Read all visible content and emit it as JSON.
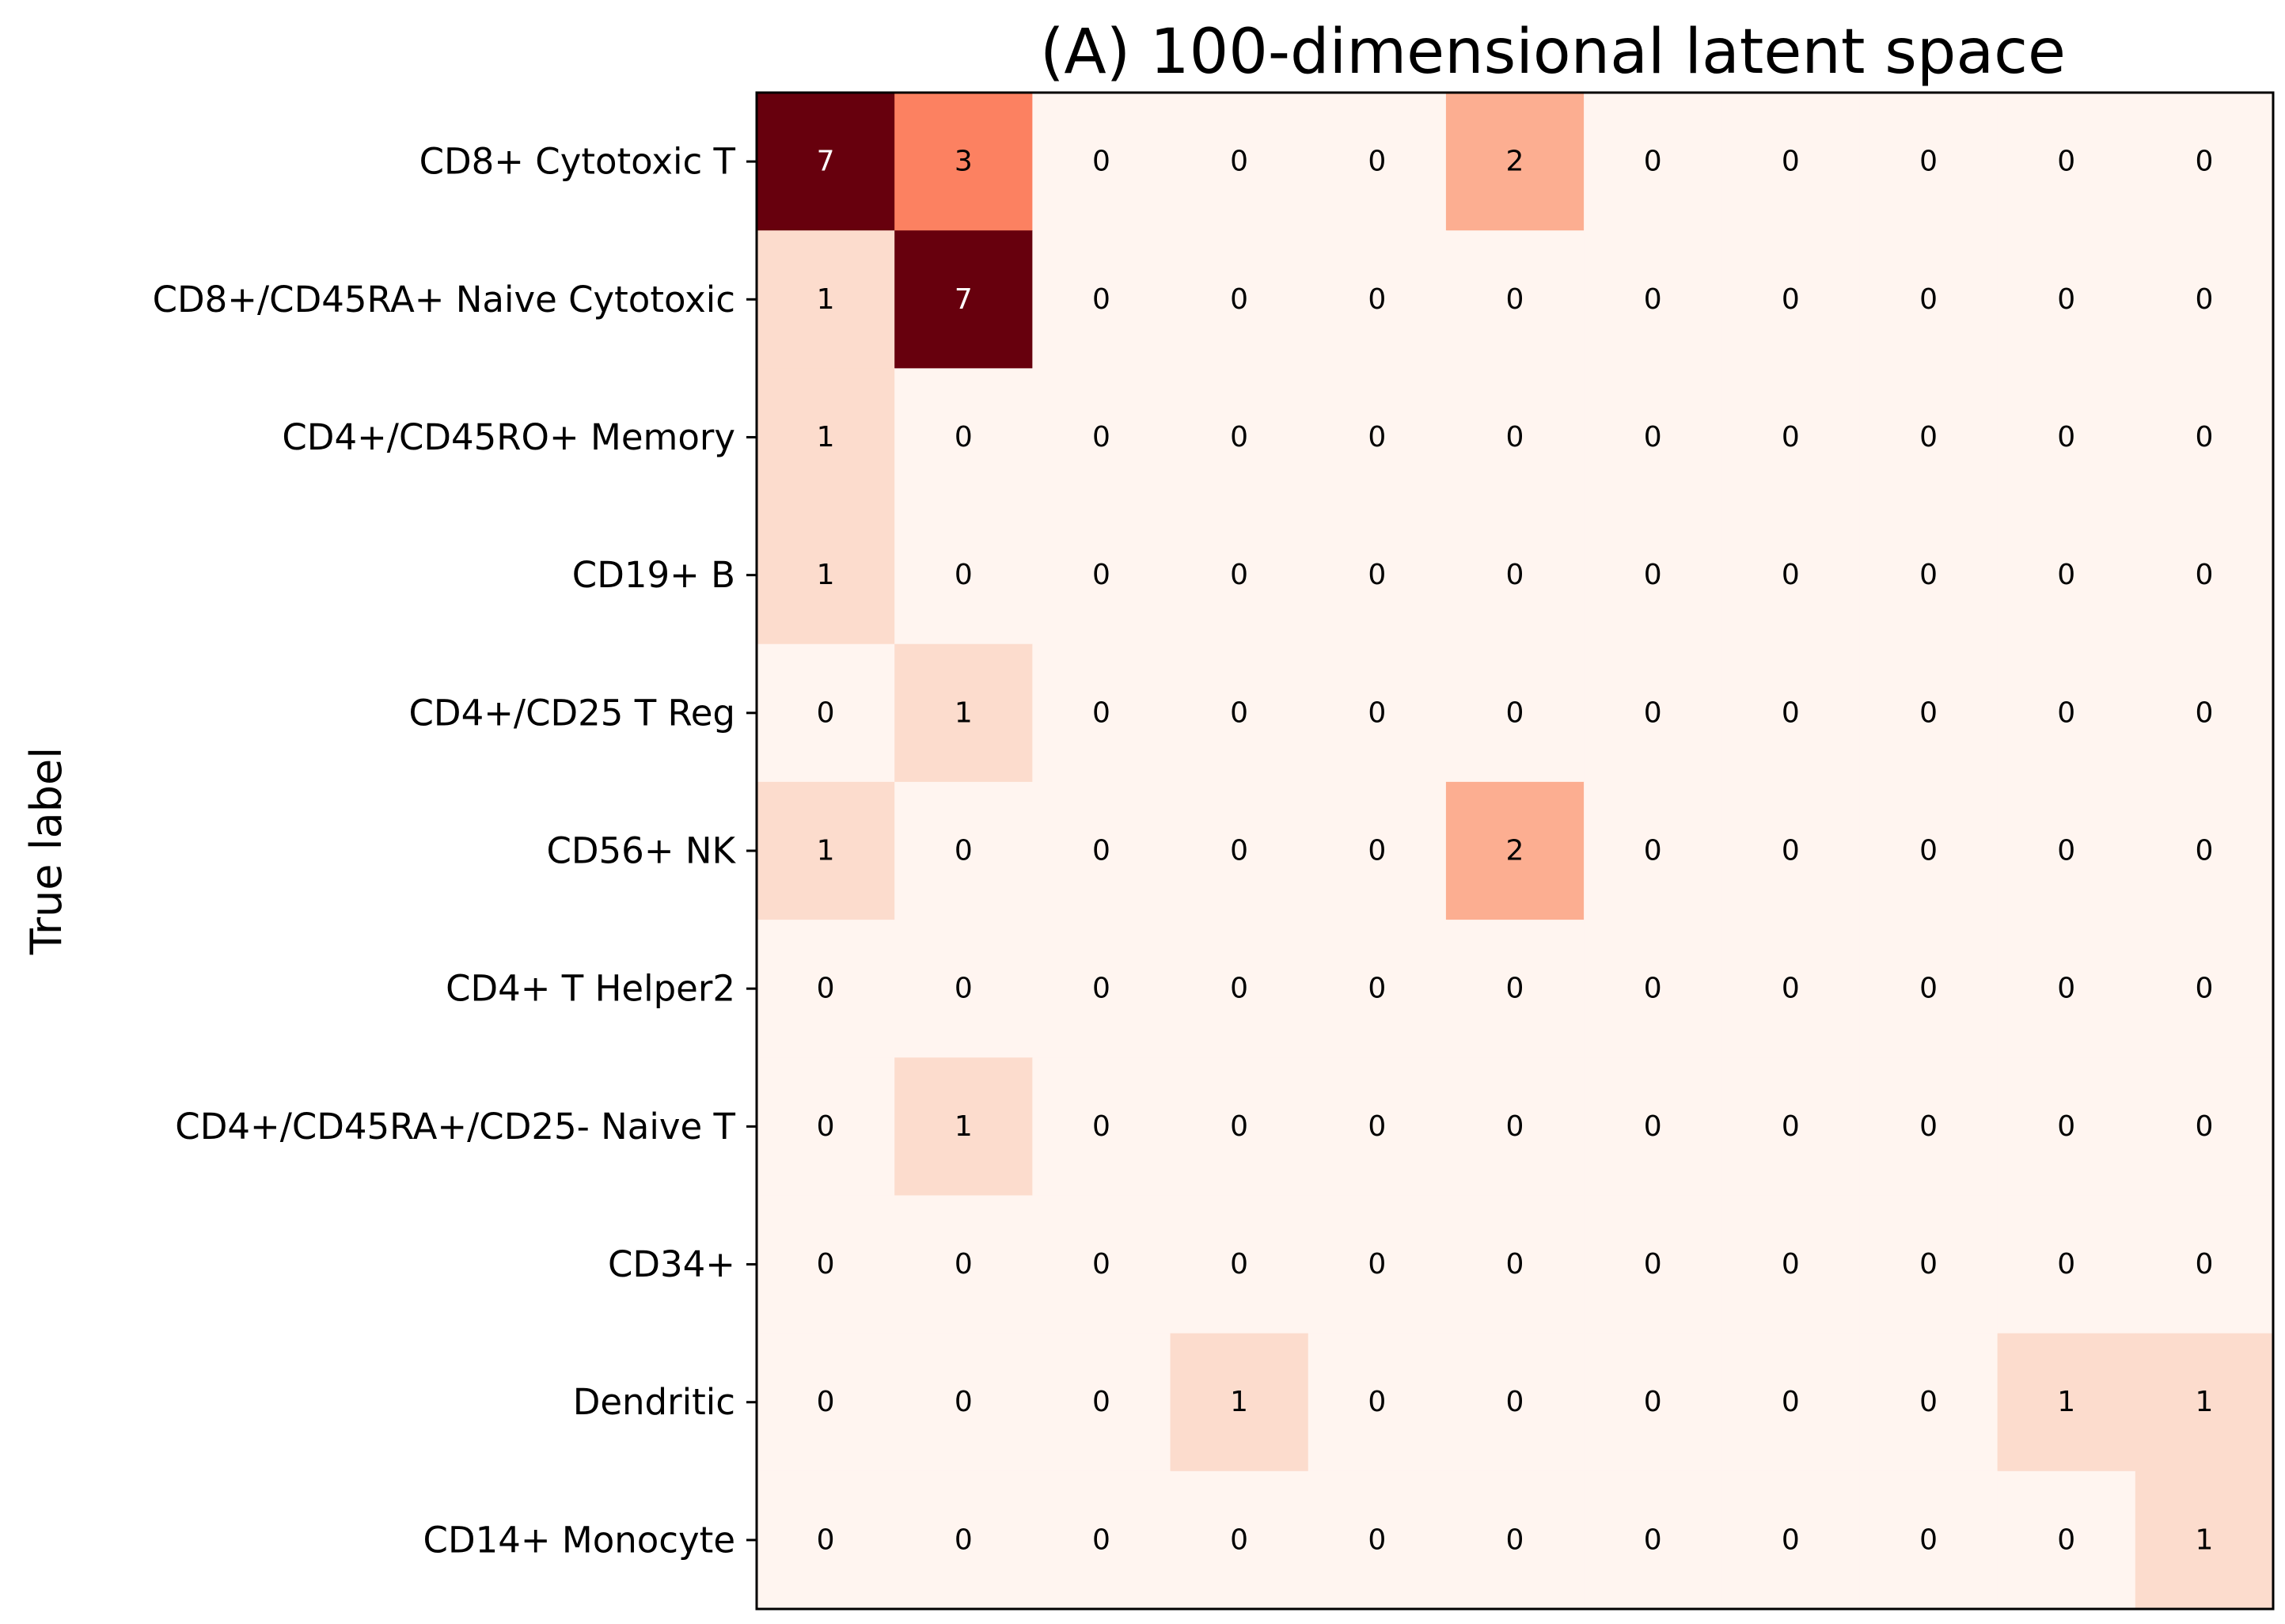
{
  "chart_data": {
    "type": "heatmap",
    "title": "(A) 100-dimensional latent space",
    "xlabel": "",
    "ylabel": "True label",
    "row_labels": [
      "CD8+ Cytotoxic T",
      "CD8+/CD45RA+ Naive Cytotoxic",
      "CD4+/CD45RO+ Memory",
      "CD19+ B",
      "CD4+/CD25 T Reg",
      "CD56+ NK",
      "CD4+ T Helper2",
      "CD4+/CD45RA+/CD25- Naive T",
      "CD34+",
      "Dendritic",
      "CD14+ Monocyte"
    ],
    "values": [
      [
        7,
        3,
        0,
        0,
        0,
        2,
        0,
        0,
        0,
        0,
        0
      ],
      [
        1,
        7,
        0,
        0,
        0,
        0,
        0,
        0,
        0,
        0,
        0
      ],
      [
        1,
        0,
        0,
        0,
        0,
        0,
        0,
        0,
        0,
        0,
        0
      ],
      [
        1,
        0,
        0,
        0,
        0,
        0,
        0,
        0,
        0,
        0,
        0
      ],
      [
        0,
        1,
        0,
        0,
        0,
        0,
        0,
        0,
        0,
        0,
        0
      ],
      [
        1,
        0,
        0,
        0,
        0,
        2,
        0,
        0,
        0,
        0,
        0
      ],
      [
        0,
        0,
        0,
        0,
        0,
        0,
        0,
        0,
        0,
        0,
        0
      ],
      [
        0,
        1,
        0,
        0,
        0,
        0,
        0,
        0,
        0,
        0,
        0
      ],
      [
        0,
        0,
        0,
        0,
        0,
        0,
        0,
        0,
        0,
        0,
        0
      ],
      [
        0,
        0,
        0,
        1,
        0,
        0,
        0,
        0,
        0,
        1,
        1
      ],
      [
        0,
        0,
        0,
        0,
        0,
        0,
        0,
        0,
        0,
        0,
        1
      ]
    ],
    "colormap": "Reds",
    "value_range": [
      0,
      7
    ],
    "colors": {
      "zero": "#fff5f0",
      "one": "#fcdccd",
      "two": "#fcae91",
      "three": "#fc8161",
      "seven": "#67000d",
      "text_dark": "#000000",
      "text_light": "#ffffff"
    },
    "grid": false,
    "legend": "none"
  }
}
